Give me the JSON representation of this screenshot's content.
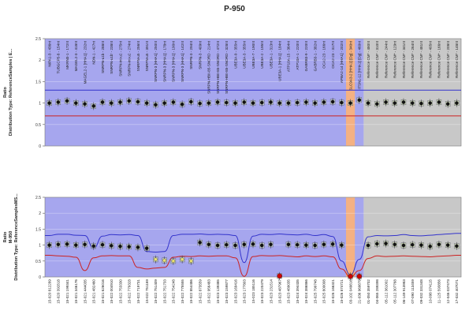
{
  "title": "P-950",
  "colors": {
    "plot_bg_blue": "#a6a6ee",
    "plot_bg_grey": "#c8c8c8",
    "highlight_orange": "#f4b183",
    "upper_line": "#3333cc",
    "lower_line": "#cc2222",
    "marker": "#111111"
  },
  "chart_data": [
    {
      "type": "scatter",
      "panel": "top",
      "ylabel_lines": [
        "Ratio",
        "Distribution Type: ReferenceSamples | E..."
      ],
      "ylim": [
        0,
        2.5
      ],
      "yticks": [
        "0",
        "0.5",
        "1",
        "1.5",
        "2",
        "2.5"
      ],
      "grid": true,
      "x": [
        "NIPA1-3 - 436nt",
        "TUBGCP5-8 - 154nt",
        "MKRN3-1 - 172nt",
        "MAGEL2-3 - 418nt",
        "MAGEL2-1 [HHA1] - 232nt",
        "NDN-1 - 427nt",
        "SNRPN-u1b - 288nt",
        "SNRPN-u1b' - 238nt",
        "SNRPN-int-u2 - 275nt",
        "SNRPN-int-u2 - 274nt",
        "SNRPN-u5 - 256nt",
        "SNRPN-u5 - 391nt",
        "SNRPN-3 [HHA1] - 250nt",
        "SNRPN-3 [HHA1] - 178nt",
        "SNRPN-3 [HHA1] - 190nt",
        "SNRPN-3 [HHA1] - 142nt",
        "SNRPN-3 - 294nt",
        "SNRPN-3 - 409nt",
        "SNRPN-HBII-85-SNORD - 214nt",
        "SNRPN-HBII-85-SNORD - 472nt",
        "SNRPN-HBII-85-SNORD - 328nt",
        "UBE3A-9 - 355nt",
        "UBE3A-3 - 355nt",
        "UBE3A-7 - 190nt",
        "UBE3A-2 - 195nt",
        "UBE3A-1 - 313nt",
        "UBE3A-1 [HHA1] - 184nt",
        "ATP10A-15 - 364nt",
        "ATP10A-1 - 220nt",
        "GABRB3-9 - 220nt",
        "GABRB3-1 - 382nt",
        "OCA2-23 - 166nt",
        "OCA2-23 - 317nt",
        "APBA2-14 [HHA1] - 202nt",
        "SLC9A3-2 [HHA1] [Dg] - 340nt",
        "ITSN1-12 [HHA1] [Dg] - 460nt",
        "Reference CM* - 480nt",
        "Reference CM* - 310nt",
        "Reference CM* - 244nt",
        "Reference CM* - 129nt",
        "Reference CM* - 341nt",
        "Reference CM* - 264nt",
        "Reference CM* - 481nt",
        "Reference CM* - 405nt",
        "Reference CM* - 166nt",
        "Reference CM* - 208nt",
        "Reference CM* - 148nt"
      ],
      "y": [
        1.0,
        1.02,
        1.05,
        1.0,
        0.98,
        0.93,
        1.02,
        1.0,
        1.02,
        1.05,
        1.03,
        1.0,
        0.96,
        1.0,
        1.02,
        0.97,
        1.03,
        0.99,
        1.0,
        1.02,
        1.01,
        1.0,
        1.02,
        1.0,
        1.01,
        1.02,
        1.0,
        1.0,
        1.01,
        1.02,
        1.0,
        1.02,
        1.03,
        1.01,
        1.0,
        1.07,
        1.0,
        0.98,
        1.02,
        1.0,
        1.02,
        1.0,
        0.99,
        1.0,
        1.02,
        0.98,
        1.0
      ],
      "upper_limit": 1.3,
      "lower_limit": 0.7,
      "blue_region_until": "ITSN1-12 [HHA1] [Dg] - 460nt",
      "highlighted": [
        "SLC9A3-2 [HHA1] [Dg] - 340nt"
      ]
    },
    {
      "type": "scatter",
      "panel": "bottom",
      "ylabel_lines": [
        "Ratio",
        "M-950",
        "Distribution Type: ReferenceSamplesMS..."
      ],
      "ylim": [
        0,
        2.5
      ],
      "yticks": [
        "0",
        "0.5",
        "1",
        "1.5",
        "2",
        "2.5"
      ],
      "grid": true,
      "x": [
        "15-020 812289",
        "15-020 392818",
        "15-021 199341",
        "15-021 346176",
        "15-021 444035",
        "15-021 482460",
        "15-021 626016",
        "15-022 004910",
        "15-022 753330",
        "15-022 779328",
        "15-022 719731",
        "15-022 751169",
        "15-022 751409",
        "15-022 751733",
        "15-022 754248",
        "15-022 775555",
        "15-022 854486",
        "15-022 873559",
        "15-022 956483",
        "15-023 139385",
        "15-023 159877",
        "15-023 169416",
        "15-023 177803",
        "15-023 185116",
        "15-023 220479",
        "15-023 231514",
        "15-023 487967",
        "15-023 489035",
        "15-024 394435",
        "15-024 386866",
        "15-025 799748",
        "15-025 800008",
        "15-026 166321",
        "15-026 874721",
        "03-102 049816",
        "21-036 969879",
        "01-050 359702",
        "04-065 289398",
        "05-112 361002",
        "05-112 307768",
        "06-149 913983",
        "07-090 113459",
        "09-032 331348",
        "10-098 074115",
        "11-125 593856",
        "12-046 037473",
        "17-032 407071"
      ],
      "y": [
        1.0,
        1.02,
        1.03,
        1.0,
        1.02,
        0.97,
        1.01,
        0.98,
        0.96,
        0.95,
        0.93,
        0.9,
        0.55,
        0.52,
        0.5,
        0.55,
        0.5,
        1.08,
        1.02,
        0.99,
        1.01,
        0.99,
        1.02,
        1.03,
        0.99,
        1.02,
        0.03,
        1.02,
        1.01,
        1.0,
        0.99,
        1.02,
        1.03,
        1.0,
        0.02,
        0.02,
        0.99,
        1.04,
        1.05,
        1.02,
        0.99,
        1.01,
        1.0,
        0.96,
        1.02,
        1.0,
        0.97
      ],
      "upper_limit_profile": [
        1.3,
        1.34,
        1.34,
        1.31,
        1.3,
        0.9,
        1.28,
        1.33,
        1.32,
        1.33,
        1.3,
        0.8,
        0.78,
        0.8,
        1.3,
        1.34,
        1.34,
        1.35,
        1.33,
        1.34,
        1.33,
        1.3,
        0.45,
        1.28,
        1.34,
        1.33,
        1.35,
        1.33,
        1.32,
        1.34,
        1.3,
        1.33,
        1.27,
        0.5,
        0.06,
        0.55,
        1.26,
        1.3,
        1.29,
        1.3,
        1.33,
        1.3,
        1.29,
        1.31,
        1.33,
        1.35,
        1.37
      ],
      "lower_limit_profile": [
        0.68,
        0.66,
        0.65,
        0.62,
        0.2,
        0.6,
        0.66,
        0.67,
        0.66,
        0.66,
        0.3,
        0.25,
        0.28,
        0.3,
        0.62,
        0.65,
        0.64,
        0.66,
        0.65,
        0.66,
        0.66,
        0.6,
        0.02,
        0.64,
        0.67,
        0.66,
        0.67,
        0.65,
        0.63,
        0.66,
        0.64,
        0.66,
        0.63,
        0.25,
        0.0,
        0.2,
        0.58,
        0.66,
        0.64,
        0.65,
        0.66,
        0.65,
        0.64,
        0.63,
        0.65,
        0.66,
        0.68
      ],
      "blue_region_until": "21-036 969879",
      "highlighted": [
        "03-102 049816"
      ]
    }
  ]
}
